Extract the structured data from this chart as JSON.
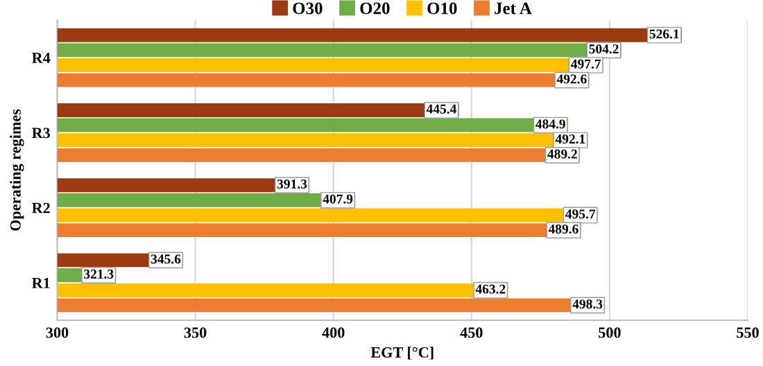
{
  "chart_data": {
    "type": "bar",
    "orientation": "horizontal",
    "xlabel": "EGT [°C]",
    "ylabel": "Operating regimes",
    "categories": [
      "R4",
      "R3",
      "R2",
      "R1"
    ],
    "series": [
      {
        "name": "O30",
        "color": "#9c3a12",
        "values": [
          526.1,
          445.4,
          391.3,
          345.6
        ]
      },
      {
        "name": "O20",
        "color": "#70ad47",
        "values": [
          504.2,
          484.9,
          407.9,
          321.3
        ]
      },
      {
        "name": "O10",
        "color": "#ffc000",
        "values": [
          497.7,
          492.1,
          495.7,
          463.2
        ]
      },
      {
        "name": "Jet A",
        "color": "#ed7d31",
        "values": [
          492.6,
          489.2,
          489.6,
          498.3
        ]
      }
    ],
    "xlim": [
      300,
      550
    ],
    "xticks": [
      300,
      350,
      400,
      450,
      500,
      550
    ],
    "grid": "x",
    "legend": "top",
    "data_labels": true
  }
}
